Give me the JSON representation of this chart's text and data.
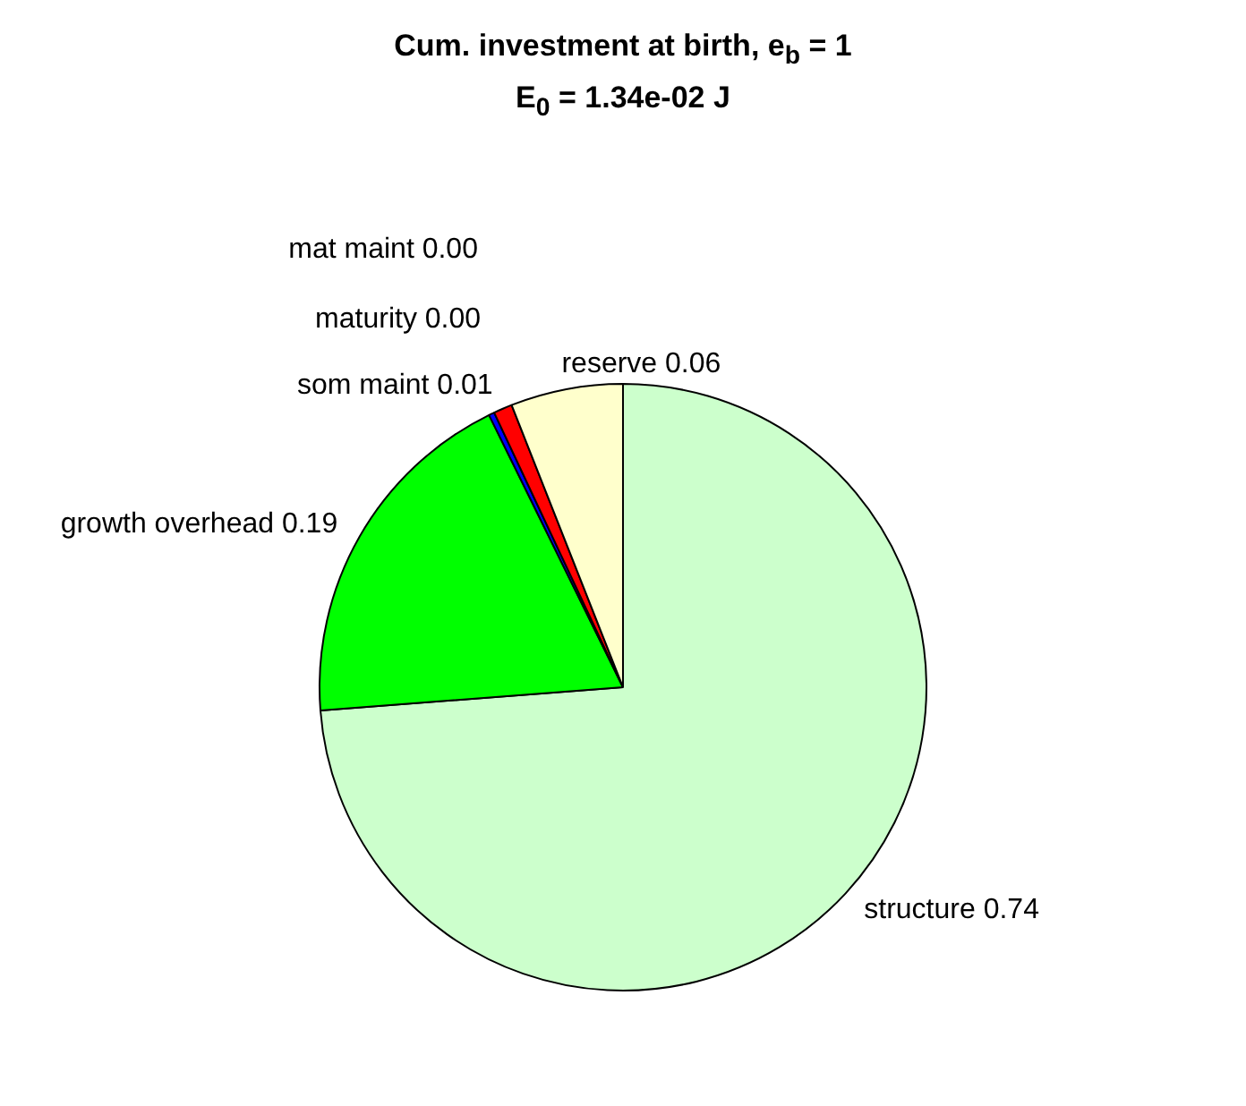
{
  "chart_data": {
    "type": "pie",
    "title": "Cum. investment at birth, e$_{b}$ = 1",
    "subtitle": "E$_{0}$ = 1.34e-02 J",
    "categories": [
      "structure",
      "growth overhead",
      "mat maint",
      "maturity",
      "som maint",
      "reserve"
    ],
    "values": [
      0.74,
      0.19,
      0.0,
      0.003,
      0.01,
      0.06
    ],
    "value_labels": [
      "0.74",
      "0.19",
      "0.00",
      "0.00",
      "0.01",
      "0.06"
    ],
    "colors": [
      "#ccffcc",
      "#00ff00",
      "#00ffff",
      "#0000ff",
      "#ff0000",
      "#ffffcc"
    ],
    "legend": false
  }
}
